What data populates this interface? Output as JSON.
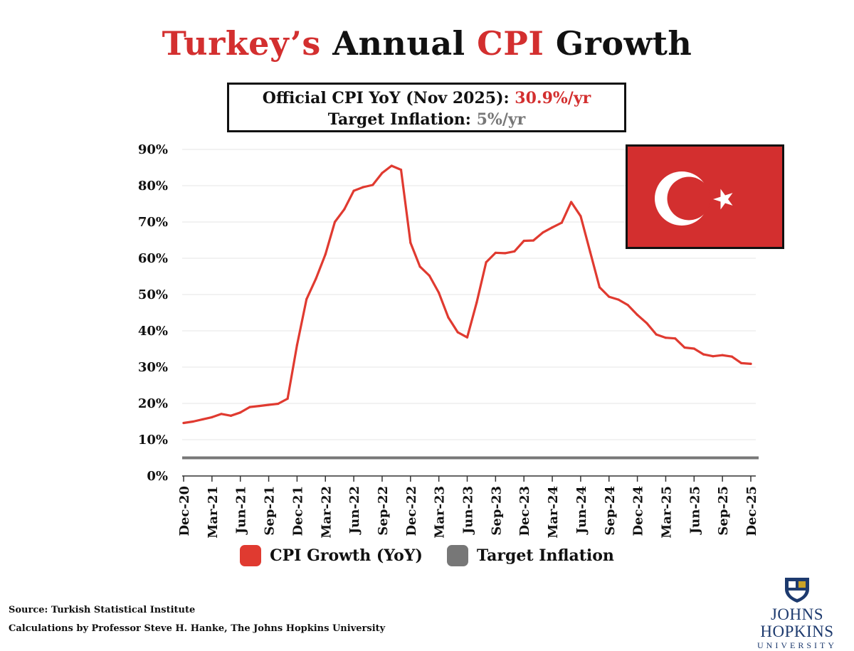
{
  "title": {
    "part1": "Turkey’s",
    "part2": "Annual",
    "part3": "CPI",
    "part4": "Growth"
  },
  "info_box": {
    "line1_label": "Official CPI YoY (Nov 2025):",
    "line1_value": "30.9%/yr",
    "line2_label": "Target Inflation:",
    "line2_value": "5%/yr"
  },
  "flag": {
    "name": "turkey-flag",
    "color": "#d32f2f"
  },
  "legend": [
    {
      "label": "CPI Growth (YoY)",
      "color": "#e03a30"
    },
    {
      "label": "Target Inflation",
      "color": "#777777"
    }
  ],
  "source": "Source: Turkish Statistical Institute",
  "credit": "Calculations by Professor Steve H. Hanke, The Johns Hopkins University",
  "logo": {
    "name": "JOHNS HOPKINS",
    "sub": "UNIVERSITY"
  },
  "chart_data": {
    "type": "line",
    "x_tick_labels": [
      "Dec-20",
      "Mar-21",
      "Jun-21",
      "Sep-21",
      "Dec-21",
      "Mar-22",
      "Jun-22",
      "Sep-22",
      "Dec-22",
      "Mar-23",
      "Jun-23",
      "Sep-23",
      "Dec-23",
      "Mar-24",
      "Jun-24",
      "Sep-24",
      "Dec-24",
      "Mar-25",
      "Jun-25",
      "Sep-25",
      "Dec-25"
    ],
    "y_tick_labels": [
      "0%",
      "10%",
      "20%",
      "30%",
      "40%",
      "50%",
      "60%",
      "70%",
      "80%",
      "90%"
    ],
    "ylim": [
      0,
      90
    ],
    "x_start": "Dec-20",
    "x_end": "Dec-25",
    "series": [
      {
        "name": "CPI Growth (YoY)",
        "color": "#e03a30",
        "values": [
          14.6,
          15.0,
          15.6,
          16.2,
          17.1,
          16.6,
          17.5,
          19.0,
          19.3,
          19.6,
          19.9,
          21.3,
          36.1,
          48.7,
          54.4,
          61.1,
          70.0,
          73.5,
          78.6,
          79.6,
          80.2,
          83.5,
          85.5,
          84.4,
          64.3,
          57.7,
          55.2,
          50.5,
          43.7,
          39.6,
          38.2,
          47.8,
          58.9,
          61.5,
          61.4,
          61.9,
          64.8,
          64.9,
          67.1,
          68.5,
          69.8,
          75.5,
          71.6,
          61.8,
          52.0,
          49.4,
          48.6,
          47.1,
          44.4,
          42.1,
          39.0,
          38.1,
          37.9,
          35.4,
          35.1,
          33.5,
          33.0,
          33.3,
          32.9,
          31.1,
          30.9
        ]
      },
      {
        "name": "Target Inflation",
        "color": "#777777",
        "values": [
          5,
          5
        ]
      }
    ],
    "grid": true,
    "legend_position": "bottom-center"
  }
}
